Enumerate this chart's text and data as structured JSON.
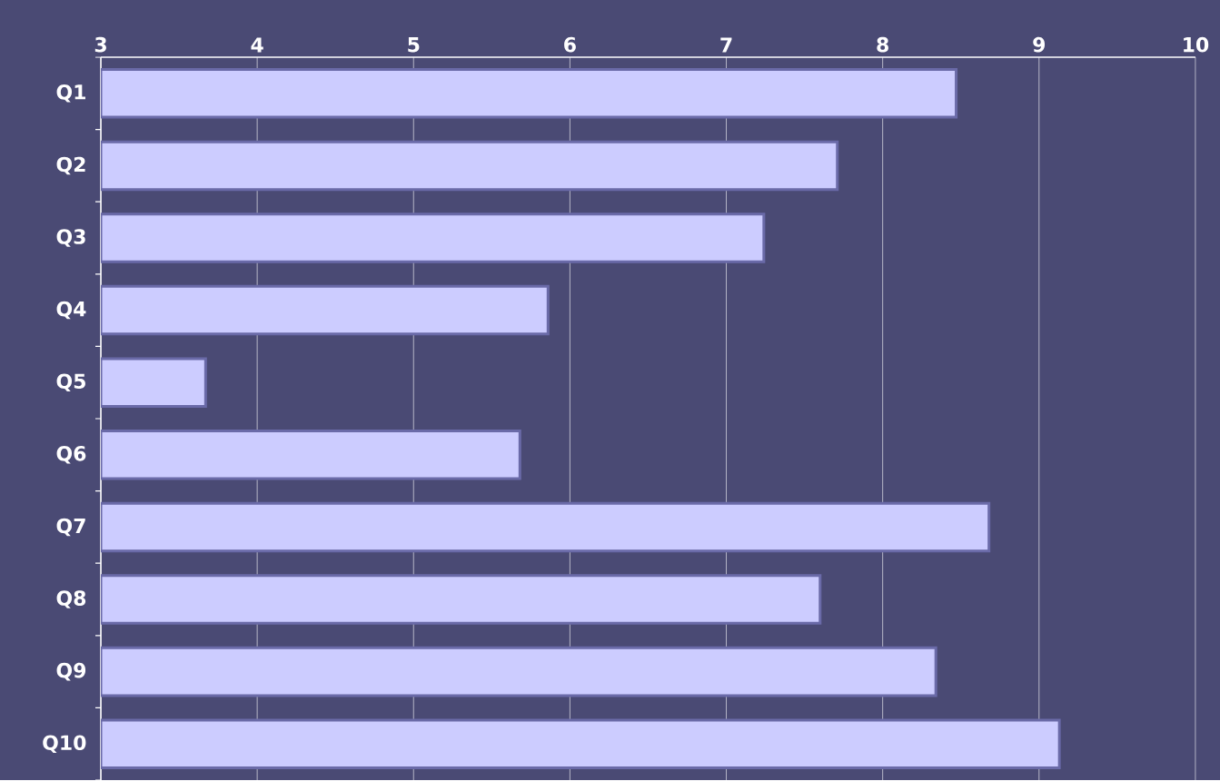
{
  "chart_data": {
    "type": "bar",
    "orientation": "horizontal",
    "categories": [
      "Q1",
      "Q2",
      "Q3",
      "Q4",
      "Q5",
      "Q6",
      "Q7",
      "Q8",
      "Q9",
      "Q10"
    ],
    "values": [
      8.47,
      7.71,
      7.24,
      5.86,
      3.67,
      5.68,
      8.68,
      7.6,
      8.34,
      9.13
    ],
    "color": "#ccccff",
    "xlim": [
      3,
      10
    ],
    "xticks": [
      3,
      4,
      5,
      6,
      7,
      8,
      9,
      10
    ],
    "grid": "x"
  }
}
